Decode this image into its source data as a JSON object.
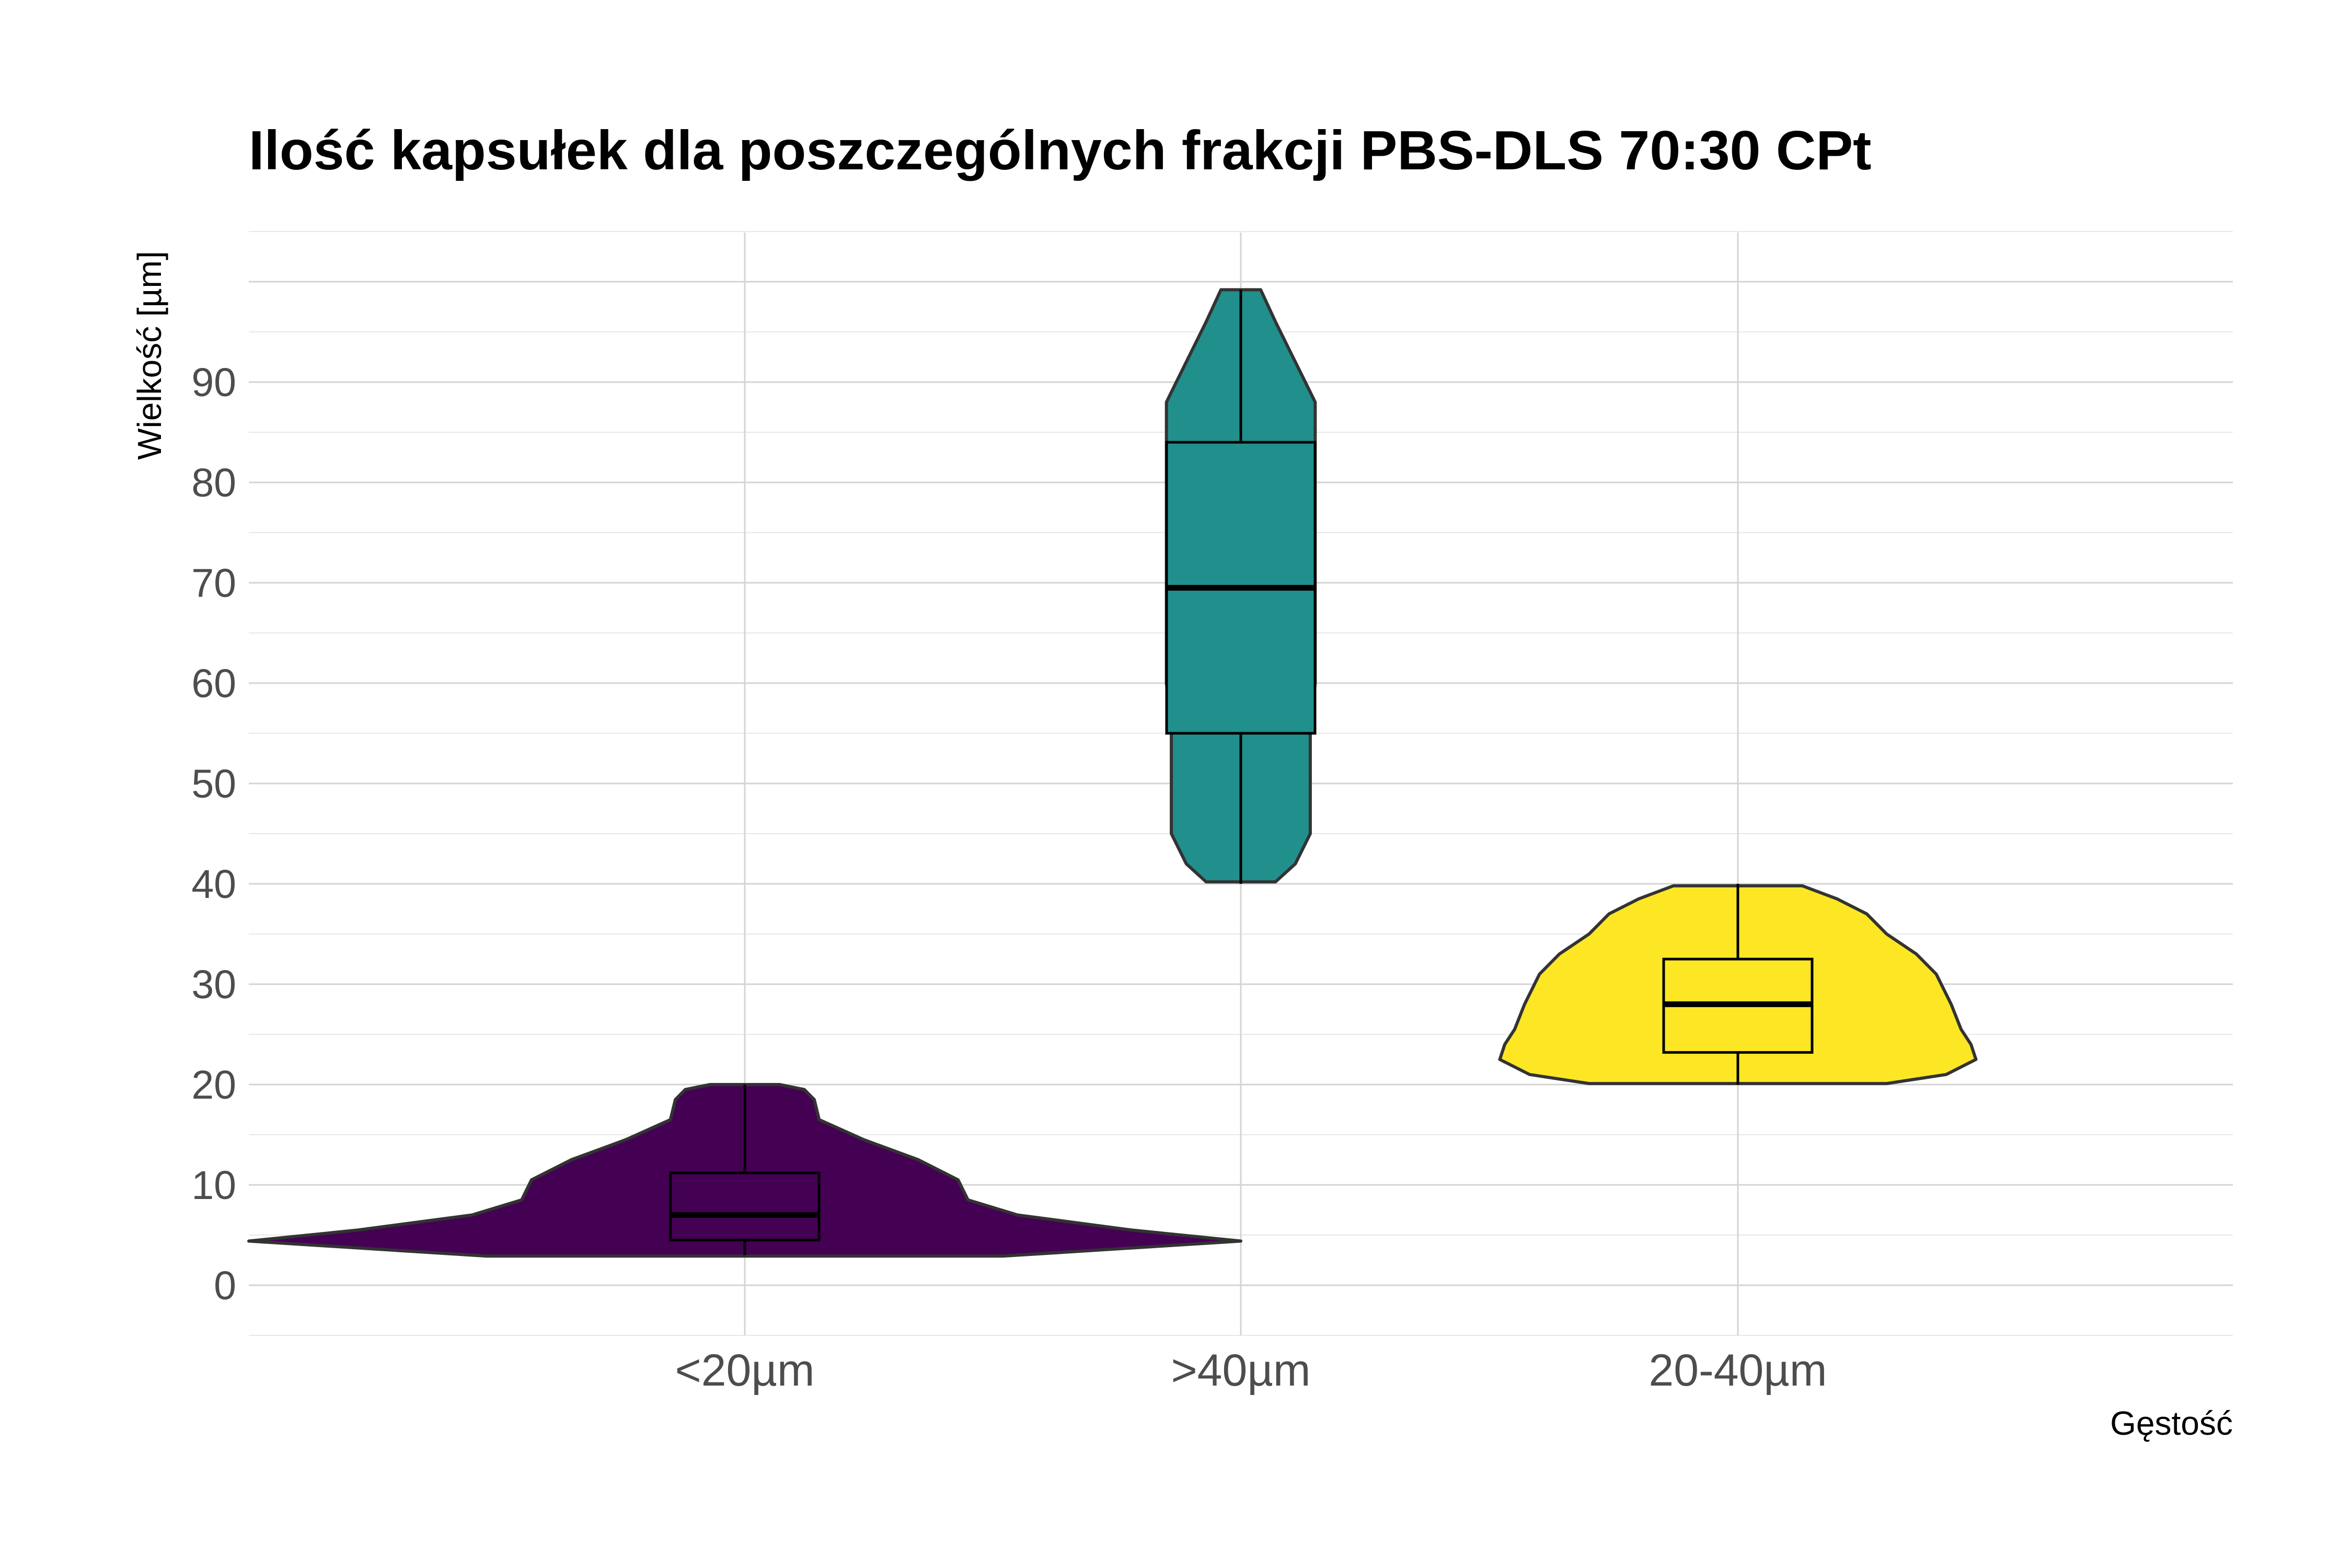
{
  "chart_data": {
    "type": "violin",
    "title": "Ilość kapsułek dla poszczególnych frakcji PBS-DLS 70:30 CPt",
    "xlabel": "Gęstość",
    "ylabel": "Wielkość [µm]",
    "categories": [
      "<20µm",
      ">40µm",
      "20-40µm"
    ],
    "ylim": [
      -5,
      105
    ],
    "yticks": [
      0,
      10,
      20,
      30,
      40,
      50,
      60,
      70,
      80,
      90
    ],
    "grid": true,
    "legend": "none",
    "groups": [
      {
        "category": "<20µm",
        "color": "#440154",
        "box": {
          "min": 3,
          "q1": 4.5,
          "median": 7,
          "q3": 11.2,
          "max": 20
        },
        "violin": [
          [
            2.9,
            0.52
          ],
          [
            4.4,
            1.0
          ],
          [
            5.5,
            0.78
          ],
          [
            7.0,
            0.55
          ],
          [
            8.5,
            0.45
          ],
          [
            10.5,
            0.43
          ],
          [
            12.5,
            0.35
          ],
          [
            14.5,
            0.24
          ],
          [
            16.5,
            0.15
          ],
          [
            18.5,
            0.14
          ],
          [
            19.5,
            0.12
          ],
          [
            20.0,
            0.07
          ]
        ]
      },
      {
        "category": ">40µm",
        "color": "#21908C",
        "box": {
          "min": 40,
          "q1": 55,
          "median": 69.5,
          "q3": 84,
          "max": 99.2
        },
        "violin": [
          [
            40.2,
            0.07
          ],
          [
            42,
            0.11
          ],
          [
            45,
            0.14
          ],
          [
            50,
            0.14
          ],
          [
            55,
            0.14
          ],
          [
            60,
            0.15
          ],
          [
            65,
            0.15
          ],
          [
            70,
            0.15
          ],
          [
            75,
            0.15
          ],
          [
            80,
            0.15
          ],
          [
            85,
            0.15
          ],
          [
            88,
            0.15
          ],
          [
            90,
            0.13
          ],
          [
            93,
            0.1
          ],
          [
            96,
            0.07
          ],
          [
            99.2,
            0.04
          ]
        ]
      },
      {
        "category": "20-40µm",
        "color": "#FDE725",
        "box": {
          "min": 20,
          "q1": 23.2,
          "median": 28,
          "q3": 32.5,
          "max": 40
        },
        "violin": [
          [
            20.1,
            0.3
          ],
          [
            21,
            0.42
          ],
          [
            22.5,
            0.48
          ],
          [
            24,
            0.47
          ],
          [
            25.5,
            0.45
          ],
          [
            28,
            0.43
          ],
          [
            31,
            0.4
          ],
          [
            33,
            0.36
          ],
          [
            35,
            0.3
          ],
          [
            37,
            0.26
          ],
          [
            38.5,
            0.2
          ],
          [
            39.8,
            0.13
          ]
        ]
      }
    ]
  }
}
